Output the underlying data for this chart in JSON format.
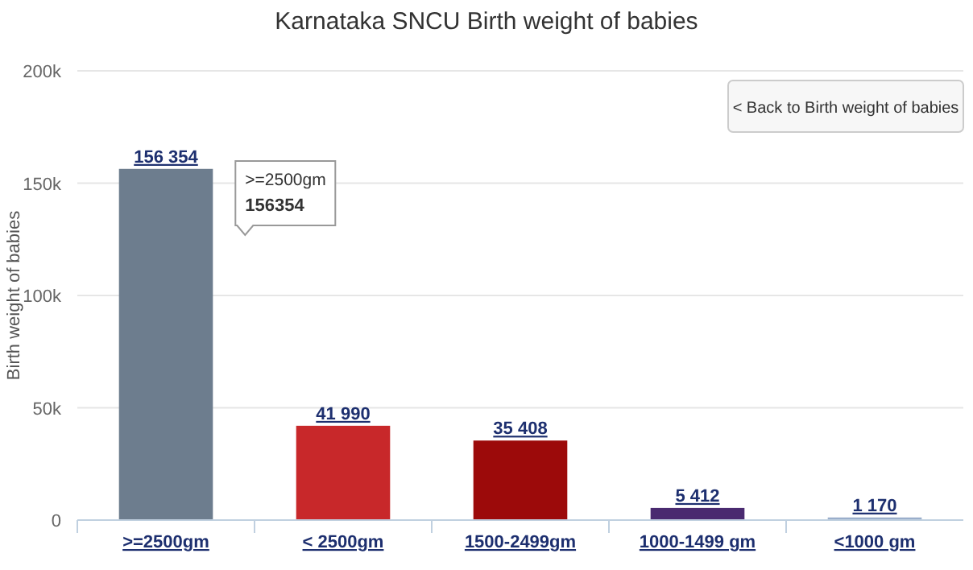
{
  "chart_data": {
    "type": "bar",
    "title": "Karnataka SNCU Birth weight of babies",
    "ylabel": "Birth weight of babies",
    "categories": [
      ">=2500gm",
      "< 2500gm",
      "1500-2499gm",
      "1000-1499 gm",
      "<1000 gm"
    ],
    "values": [
      156354,
      41990,
      35408,
      5412,
      1170
    ],
    "colors": [
      "#6d7d8e",
      "#c8282a",
      "#9c0a0a",
      "#4a2a70",
      "#9aaecb"
    ],
    "value_labels": [
      "156 354",
      "41 990",
      "35 408",
      "5 412",
      "1 170"
    ],
    "ylim": [
      0,
      200000
    ],
    "yticks": [
      {
        "value": 0,
        "label": "0"
      },
      {
        "value": 50000,
        "label": "50k"
      },
      {
        "value": 100000,
        "label": "100k"
      },
      {
        "value": 150000,
        "label": "150k"
      },
      {
        "value": 200000,
        "label": "200k"
      }
    ],
    "grid": "y",
    "annotations": [
      "< Back to Birth weight of babies",
      ">=2500gm",
      "156354"
    ]
  }
}
